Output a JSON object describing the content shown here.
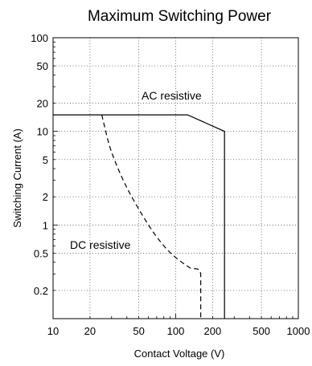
{
  "chart_data": {
    "type": "line",
    "title": "Maximum Switching Power",
    "xlabel": "Contact Voltage (V)",
    "ylabel": "Switching Current (A)",
    "xscale": "log",
    "yscale": "log",
    "xlim": [
      10,
      1000
    ],
    "ylim": [
      0.1,
      100
    ],
    "grid": true,
    "x_ticks": [
      10,
      20,
      50,
      100,
      200,
      500,
      1000
    ],
    "x_tick_labels": [
      "10",
      "20",
      "50",
      "100",
      "200",
      "500",
      "1000"
    ],
    "y_ticks": [
      0.2,
      0.5,
      1,
      2,
      5,
      10,
      20,
      50,
      100
    ],
    "y_tick_labels": [
      "0.2",
      "0.5",
      "1",
      "2",
      "5",
      "10",
      "20",
      "50",
      "100"
    ],
    "series": [
      {
        "name": "AC resistive",
        "style": "solid",
        "x": [
          10,
          125,
          250,
          250
        ],
        "y": [
          15,
          15,
          10,
          0.1
        ]
      },
      {
        "name": "DC resistive",
        "style": "dashed",
        "x": [
          25,
          26,
          30,
          40,
          60,
          80,
          100,
          130,
          160,
          160
        ],
        "y": [
          15,
          12,
          6,
          2.5,
          1,
          0.6,
          0.45,
          0.35,
          0.3,
          0.1
        ]
      }
    ]
  }
}
